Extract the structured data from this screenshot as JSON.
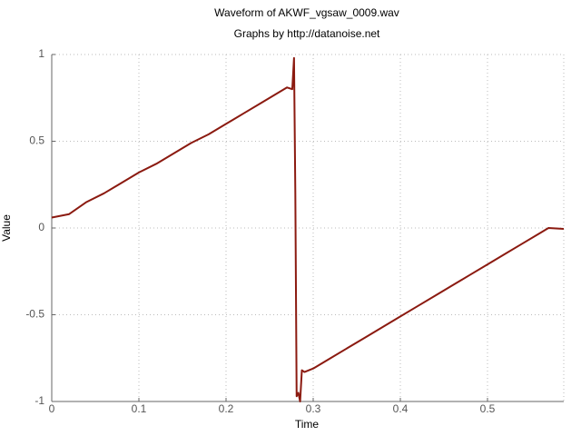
{
  "chart_data": {
    "type": "line",
    "title": "Waveform of AKWF_vgsaw_0009.wav",
    "subtitle": "Graphs by http://datanoise.net",
    "x_label": "Time",
    "y_label": "Value",
    "x": [
      0,
      0.02,
      0.04,
      0.06,
      0.08,
      0.1,
      0.12,
      0.14,
      0.16,
      0.18,
      0.2,
      0.22,
      0.24,
      0.26,
      0.27,
      0.276,
      0.278,
      0.2795,
      0.281,
      0.283,
      0.285,
      0.287,
      0.29,
      0.3,
      0.32,
      0.34,
      0.36,
      0.38,
      0.4,
      0.42,
      0.44,
      0.46,
      0.48,
      0.5,
      0.52,
      0.54,
      0.56,
      0.57,
      0.5875
    ],
    "values": [
      0.06,
      0.08,
      0.15,
      0.2,
      0.26,
      0.32,
      0.37,
      0.43,
      0.49,
      0.54,
      0.6,
      0.66,
      0.72,
      0.78,
      0.81,
      0.8,
      0.98,
      0.2,
      -0.97,
      -0.95,
      -1.0,
      -0.82,
      -0.83,
      -0.81,
      -0.75,
      -0.69,
      -0.63,
      -0.57,
      -0.51,
      -0.45,
      -0.39,
      -0.33,
      -0.27,
      -0.21,
      -0.15,
      -0.09,
      -0.03,
      0.0,
      -0.005
    ],
    "color": "#8b1a10",
    "xlim": [
      0,
      0.5875
    ],
    "ylim": [
      -1,
      1
    ],
    "xticks": [
      0,
      0.1,
      0.2,
      0.3,
      0.4,
      0.5
    ],
    "yticks": [
      -1,
      -0.5,
      0,
      0.5,
      1
    ],
    "grid": true
  }
}
